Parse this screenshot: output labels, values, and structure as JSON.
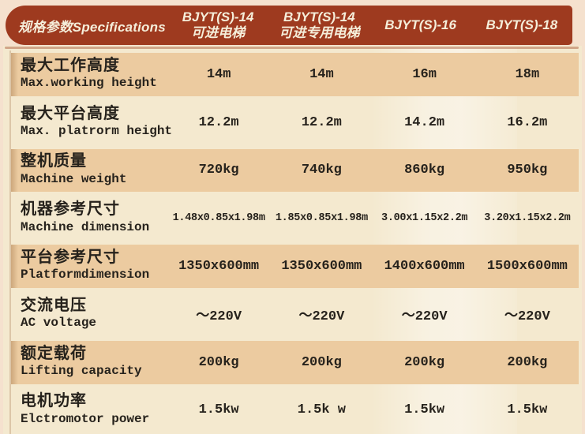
{
  "colors": {
    "header_bg": "#9e3a1f",
    "header_text": "#f5eeda",
    "page_margin": "#f5e1ce",
    "content_bg": "#f4e9cf",
    "shaded_row": "#eccba0",
    "text": "#26221c"
  },
  "table": {
    "header": {
      "spec_label": "规格参数Specifications",
      "columns": [
        {
          "line1": "BJYT(S)-14",
          "line2": "可进电梯"
        },
        {
          "line1": "BJYT(S)-14",
          "line2": "可进专用电梯"
        },
        {
          "line1": "BJYT(S)-16",
          "line2": ""
        },
        {
          "line1": "BJYT(S)-18",
          "line2": ""
        }
      ]
    },
    "rows": [
      {
        "label_zh": "最大工作高度",
        "label_en": "Max.working height",
        "values": [
          "14m",
          "14m",
          "16m",
          "18m"
        ],
        "shaded": true
      },
      {
        "label_zh": "最大平台高度",
        "label_en": "Max. platrorm height",
        "values": [
          "12.2m",
          "12.2m",
          "14.2m",
          "16.2m"
        ],
        "shaded": false
      },
      {
        "label_zh": "整机质量",
        "label_en": "Machine weight",
        "values": [
          "720kg",
          "740kg",
          "860kg",
          "950kg"
        ],
        "shaded": true
      },
      {
        "label_zh": "机器参考尺寸",
        "label_en": "Machine dimension",
        "values": [
          "1.48x0.85x1.98m",
          "1.85x0.85x1.98m",
          "3.00x1.15x2.2m",
          "3.20x1.15x2.2m"
        ],
        "shaded": false
      },
      {
        "label_zh": "平台参考尺寸",
        "label_en": "Platformdimension",
        "values": [
          "1350x600mm",
          "1350x600mm",
          "1400x600mm",
          "1500x600mm"
        ],
        "shaded": true
      },
      {
        "label_zh": "交流电压",
        "label_en": "AC voltage",
        "values": [
          "～220V",
          "～220V",
          "～220V",
          "～220V"
        ],
        "shaded": false
      },
      {
        "label_zh": "额定载荷",
        "label_en": "Lifting capacity",
        "values": [
          "200kg",
          "200kg",
          "200kg",
          "200kg"
        ],
        "shaded": true
      },
      {
        "label_zh": "电机功率",
        "label_en": "Elctromotor power",
        "values": [
          "1.5kw",
          "1.5k w",
          "1.5kw",
          "1.5kw"
        ],
        "shaded": false
      }
    ]
  }
}
